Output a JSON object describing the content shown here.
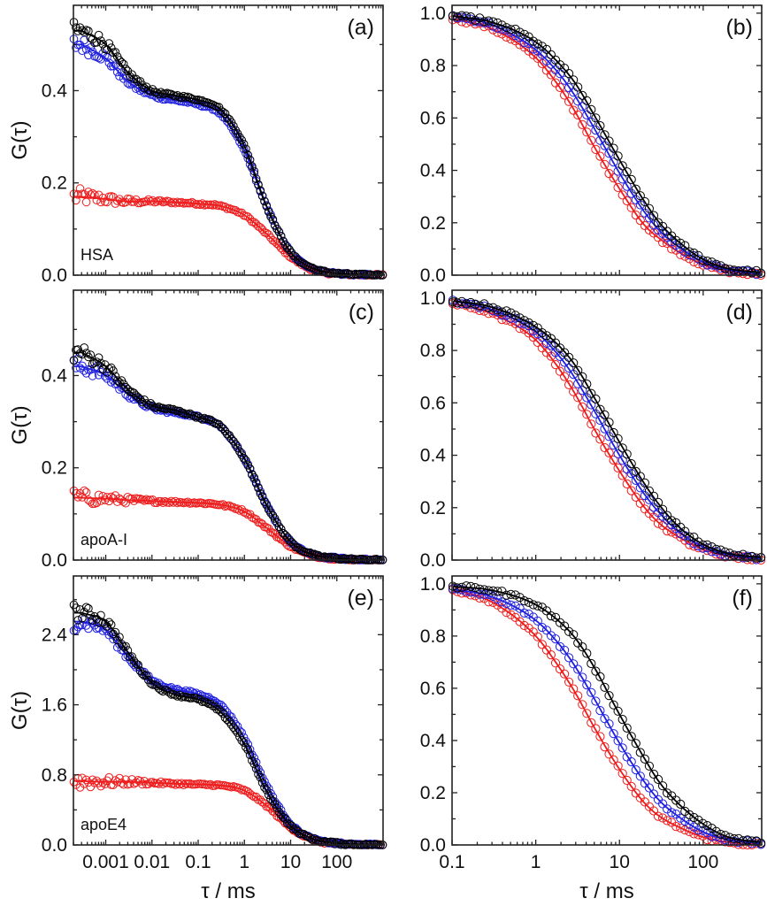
{
  "chart_data": [
    {
      "id": "a",
      "type": "scatter",
      "panel_label": "(a)",
      "sample_label": "HSA",
      "xscale": "log",
      "xlim": [
        0.0002,
        1000
      ],
      "ylim": [
        0,
        0.585
      ],
      "yticks": [
        0.0,
        0.2,
        0.4
      ],
      "ytick_labels": [
        "0.0",
        "0.2",
        "0.4"
      ],
      "yminor": [
        0.1,
        0.3,
        0.5
      ],
      "xticks": [
        0.001,
        0.01,
        0.1,
        1,
        10,
        100
      ],
      "xtick_labels": [],
      "ylabel": "G(τ)",
      "xlabel": "",
      "x": [
        0.0003,
        0.001,
        0.003,
        0.01,
        0.03,
        0.1,
        0.3,
        1,
        3,
        10,
        30,
        100,
        300,
        800
      ],
      "series": [
        {
          "name": "black",
          "color": "#000000",
          "values": [
            0.53,
            0.5,
            0.44,
            0.4,
            0.39,
            0.38,
            0.36,
            0.28,
            0.15,
            0.05,
            0.015,
            0.004,
            0.001,
            0.0
          ]
        },
        {
          "name": "blue",
          "color": "#1f1fe0",
          "values": [
            0.5,
            0.47,
            0.42,
            0.39,
            0.38,
            0.37,
            0.35,
            0.27,
            0.15,
            0.05,
            0.015,
            0.004,
            0.001,
            0.0
          ]
        },
        {
          "name": "red",
          "color": "#ee1c1c",
          "values": [
            0.17,
            0.165,
            0.16,
            0.16,
            0.158,
            0.155,
            0.15,
            0.13,
            0.09,
            0.04,
            0.012,
            0.003,
            0.001,
            0.0
          ]
        }
      ]
    },
    {
      "id": "b",
      "type": "scatter",
      "panel_label": "(b)",
      "xscale": "log",
      "xlim": [
        0.1,
        500
      ],
      "ylim": [
        0,
        1.03
      ],
      "yticks": [
        0.0,
        0.2,
        0.4,
        0.6,
        0.8,
        1.0
      ],
      "ytick_labels": [
        "0.0",
        "0.2",
        "0.4",
        "0.6",
        "0.8",
        "1.0"
      ],
      "yminor": [
        0.1,
        0.3,
        0.5,
        0.7,
        0.9
      ],
      "xticks": [
        0.1,
        1,
        10,
        100
      ],
      "xtick_labels": [],
      "ylabel": "",
      "xlabel": "",
      "x": [
        0.1,
        0.3,
        1,
        2,
        3,
        5,
        10,
        20,
        30,
        50,
        100,
        200,
        500
      ],
      "series": [
        {
          "name": "black",
          "color": "#000000",
          "values": [
            0.99,
            0.965,
            0.89,
            0.8,
            0.73,
            0.61,
            0.44,
            0.28,
            0.2,
            0.13,
            0.06,
            0.025,
            0.01
          ]
        },
        {
          "name": "blue",
          "color": "#1f1fe0",
          "values": [
            0.99,
            0.955,
            0.86,
            0.76,
            0.68,
            0.56,
            0.39,
            0.24,
            0.17,
            0.11,
            0.05,
            0.02,
            0.005
          ]
        },
        {
          "name": "red",
          "color": "#ee1c1c",
          "values": [
            0.98,
            0.94,
            0.83,
            0.71,
            0.62,
            0.49,
            0.33,
            0.19,
            0.14,
            0.09,
            0.04,
            0.015,
            0.0
          ]
        }
      ]
    },
    {
      "id": "c",
      "type": "scatter",
      "panel_label": "(c)",
      "sample_label": "apoA-I",
      "xscale": "log",
      "xlim": [
        0.0002,
        1000
      ],
      "ylim": [
        0,
        0.585
      ],
      "yticks": [
        0.0,
        0.2,
        0.4
      ],
      "ytick_labels": [
        "0.0",
        "0.2",
        "0.4"
      ],
      "yminor": [
        0.1,
        0.3,
        0.5
      ],
      "xticks": [
        0.001,
        0.01,
        0.1,
        1,
        10,
        100
      ],
      "xtick_labels": [],
      "ylabel": "G(τ)",
      "xlabel": "",
      "x": [
        0.0003,
        0.001,
        0.003,
        0.01,
        0.03,
        0.1,
        0.3,
        1,
        3,
        10,
        30,
        100,
        300,
        800
      ],
      "series": [
        {
          "name": "black",
          "color": "#000000",
          "values": [
            0.45,
            0.42,
            0.37,
            0.335,
            0.325,
            0.31,
            0.29,
            0.22,
            0.12,
            0.04,
            0.012,
            0.004,
            0.001,
            0.0
          ]
        },
        {
          "name": "blue",
          "color": "#1f1fe0",
          "values": [
            0.42,
            0.4,
            0.36,
            0.33,
            0.32,
            0.31,
            0.29,
            0.22,
            0.12,
            0.04,
            0.012,
            0.004,
            0.001,
            0.0
          ]
        },
        {
          "name": "red",
          "color": "#ee1c1c",
          "values": [
            0.135,
            0.133,
            0.13,
            0.128,
            0.126,
            0.124,
            0.12,
            0.105,
            0.07,
            0.03,
            0.01,
            0.003,
            0.001,
            0.0
          ]
        }
      ]
    },
    {
      "id": "d",
      "type": "scatter",
      "panel_label": "(d)",
      "xscale": "log",
      "xlim": [
        0.1,
        500
      ],
      "ylim": [
        0,
        1.03
      ],
      "yticks": [
        0.0,
        0.2,
        0.4,
        0.6,
        0.8,
        1.0
      ],
      "ytick_labels": [
        "0.0",
        "0.2",
        "0.4",
        "0.6",
        "0.8",
        "1.0"
      ],
      "yminor": [
        0.1,
        0.3,
        0.5,
        0.7,
        0.9
      ],
      "xticks": [
        0.1,
        1,
        10,
        100
      ],
      "xtick_labels": [],
      "ylabel": "",
      "xlabel": "",
      "x": [
        0.1,
        0.3,
        1,
        2,
        3,
        5,
        10,
        20,
        30,
        50,
        100,
        200,
        500
      ],
      "series": [
        {
          "name": "black",
          "color": "#000000",
          "values": [
            0.99,
            0.965,
            0.89,
            0.81,
            0.74,
            0.62,
            0.45,
            0.29,
            0.21,
            0.13,
            0.06,
            0.025,
            0.01
          ]
        },
        {
          "name": "blue",
          "color": "#1f1fe0",
          "values": [
            0.99,
            0.955,
            0.87,
            0.77,
            0.69,
            0.57,
            0.4,
            0.25,
            0.18,
            0.11,
            0.05,
            0.02,
            0.005
          ]
        },
        {
          "name": "red",
          "color": "#ee1c1c",
          "values": [
            0.98,
            0.94,
            0.84,
            0.72,
            0.63,
            0.5,
            0.34,
            0.2,
            0.14,
            0.09,
            0.04,
            0.015,
            0.0
          ]
        }
      ]
    },
    {
      "id": "e",
      "type": "scatter",
      "panel_label": "(e)",
      "sample_label": "apoE4",
      "xscale": "log",
      "xlim": [
        0.0002,
        1000
      ],
      "ylim": [
        0,
        3.07
      ],
      "yticks": [
        0.0,
        0.8,
        1.6,
        2.4
      ],
      "ytick_labels": [
        "0.0",
        "0.8",
        "1.6",
        "2.4"
      ],
      "yminor": [
        0.4,
        1.2,
        2.0,
        2.8
      ],
      "xticks": [
        0.001,
        0.01,
        0.1,
        1,
        10,
        100
      ],
      "xtick_labels": [
        "0.001",
        "0.01",
        "0.1",
        "1",
        "10",
        "100"
      ],
      "ylabel": "G(τ)",
      "xlabel": "τ / ms",
      "x": [
        0.0003,
        0.001,
        0.003,
        0.01,
        0.03,
        0.1,
        0.3,
        1,
        3,
        10,
        30,
        100,
        300,
        800
      ],
      "series": [
        {
          "name": "black",
          "color": "#000000",
          "values": [
            2.65,
            2.55,
            2.2,
            1.85,
            1.72,
            1.66,
            1.52,
            1.15,
            0.62,
            0.22,
            0.07,
            0.02,
            0.005,
            0.0
          ]
        },
        {
          "name": "blue",
          "color": "#1f1fe0",
          "values": [
            2.55,
            2.45,
            2.15,
            1.88,
            1.78,
            1.72,
            1.6,
            1.22,
            0.68,
            0.24,
            0.07,
            0.02,
            0.005,
            0.0
          ]
        },
        {
          "name": "red",
          "color": "#ee1c1c",
          "values": [
            0.73,
            0.72,
            0.72,
            0.71,
            0.7,
            0.69,
            0.68,
            0.62,
            0.45,
            0.2,
            0.06,
            0.015,
            0.004,
            0.0
          ]
        }
      ]
    },
    {
      "id": "f",
      "type": "scatter",
      "panel_label": "(f)",
      "xscale": "log",
      "xlim": [
        0.1,
        500
      ],
      "ylim": [
        0,
        1.03
      ],
      "yticks": [
        0.0,
        0.2,
        0.4,
        0.6,
        0.8,
        1.0
      ],
      "ytick_labels": [
        "0.0",
        "0.2",
        "0.4",
        "0.6",
        "0.8",
        "1.0"
      ],
      "yminor": [
        0.1,
        0.3,
        0.5,
        0.7,
        0.9
      ],
      "xticks": [
        0.1,
        1,
        10,
        100
      ],
      "xtick_labels": [
        "0.1",
        "1",
        "10",
        "100"
      ],
      "ylabel": "",
      "xlabel": "τ / ms",
      "x": [
        0.1,
        0.3,
        1,
        2,
        3,
        5,
        10,
        20,
        30,
        50,
        100,
        200,
        500
      ],
      "series": [
        {
          "name": "black",
          "color": "#000000",
          "values": [
            0.99,
            0.975,
            0.92,
            0.85,
            0.79,
            0.68,
            0.5,
            0.33,
            0.24,
            0.16,
            0.08,
            0.03,
            0.01
          ]
        },
        {
          "name": "blue",
          "color": "#1f1fe0",
          "values": [
            0.98,
            0.95,
            0.86,
            0.76,
            0.68,
            0.56,
            0.39,
            0.24,
            0.17,
            0.11,
            0.05,
            0.02,
            0.005
          ]
        },
        {
          "name": "red",
          "color": "#ee1c1c",
          "values": [
            0.98,
            0.93,
            0.8,
            0.67,
            0.58,
            0.45,
            0.29,
            0.16,
            0.11,
            0.07,
            0.03,
            0.01,
            0.0
          ]
        }
      ]
    }
  ]
}
